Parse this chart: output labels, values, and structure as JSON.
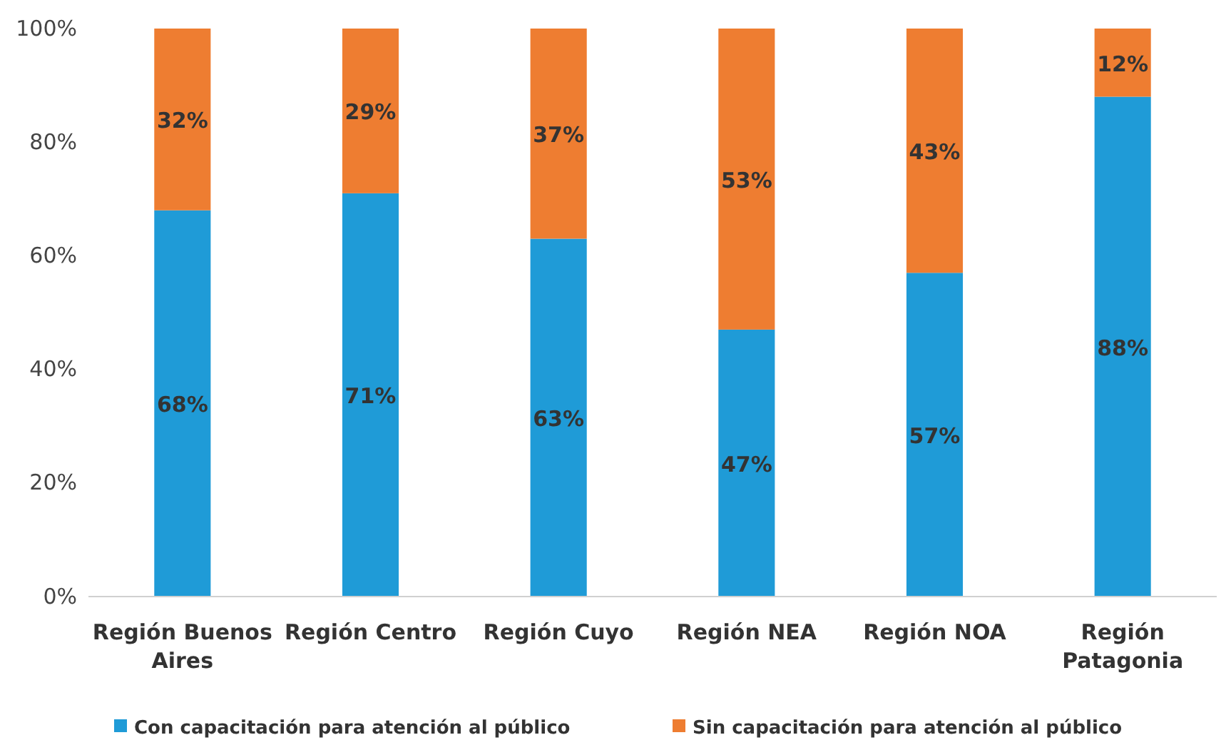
{
  "chart_data": {
    "type": "bar",
    "stacked": true,
    "categories": [
      "Región Buenos Aires",
      "Región Centro",
      "Región Cuyo",
      "Región NEA",
      "Región NOA",
      "Región Patagonia"
    ],
    "series": [
      {
        "name": "Con capacitación para atención al público",
        "color": "#1f9bd7",
        "values": [
          68,
          71,
          63,
          47,
          57,
          88
        ],
        "value_labels": [
          "68%",
          "71%",
          "63%",
          "47%",
          "57%",
          "88%"
        ]
      },
      {
        "name": "Sin capacitación para atención al público",
        "color": "#ee7d31",
        "values": [
          32,
          29,
          37,
          53,
          43,
          12
        ],
        "value_labels": [
          "32%",
          "29%",
          "37%",
          "53%",
          "43%",
          "12%"
        ]
      }
    ],
    "ylim": [
      0,
      100
    ],
    "yticks": [
      {
        "value": 0,
        "label": "0%"
      },
      {
        "value": 20,
        "label": "20%"
      },
      {
        "value": 40,
        "label": "40%"
      },
      {
        "value": 60,
        "label": "60%"
      },
      {
        "value": 80,
        "label": "80%"
      },
      {
        "value": 100,
        "label": "100%"
      }
    ],
    "grid": false,
    "legend": "bottom"
  }
}
